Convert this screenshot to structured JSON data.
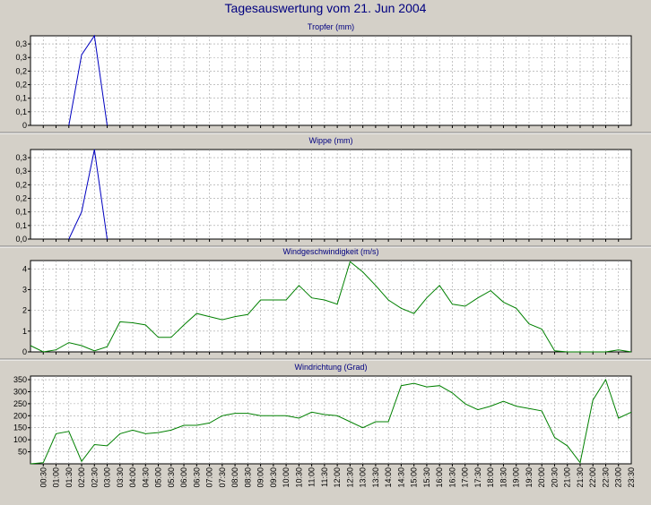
{
  "page": {
    "title": "Tagesauswertung vom 21. Jun 2004"
  },
  "colors": {
    "background": "#d4d0c8",
    "title": "#000080",
    "rain": "#0000c0",
    "wind": "#008000"
  },
  "chart_data": [
    {
      "type": "line",
      "title": "Tropfer (mm)",
      "color": "#0000c0",
      "ylim": [
        0,
        0.33
      ],
      "yticks": [
        0,
        0.05,
        0.1,
        0.15,
        0.2,
        0.25,
        0.3
      ],
      "ytick_labels": [
        "0",
        "0,1",
        "0,1",
        "0,2",
        "0,2",
        "0,3",
        "0,3"
      ],
      "x_points": [
        1.5,
        2.0,
        2.5,
        3.0
      ],
      "values": [
        0,
        0.26,
        0.33,
        0
      ]
    },
    {
      "type": "line",
      "title": "Wippe (mm)",
      "color": "#0000c0",
      "ylim": [
        0,
        0.33
      ],
      "yticks": [
        0,
        0.05,
        0.1,
        0.15,
        0.2,
        0.25,
        0.3
      ],
      "ytick_labels": [
        "0,0",
        "0,1",
        "0,1",
        "0,2",
        "0,2",
        "0,3",
        "0,3"
      ],
      "x_points": [
        1.5,
        2.0,
        2.5,
        3.0
      ],
      "values": [
        0,
        0.1,
        0.33,
        0
      ]
    },
    {
      "type": "line",
      "title": "Windgeschwindigkeit (m/s)",
      "color": "#008000",
      "ylim": [
        0,
        4.4
      ],
      "yticks": [
        0,
        1,
        2,
        3,
        4
      ],
      "ytick_labels": [
        "0",
        "1",
        "2",
        "3",
        "4"
      ],
      "x_points": [
        0,
        0.5,
        1,
        1.5,
        2,
        2.5,
        3,
        3.5,
        4,
        4.5,
        5,
        5.5,
        6,
        6.5,
        7,
        7.5,
        8,
        8.5,
        9,
        9.5,
        10,
        10.5,
        11,
        11.5,
        12,
        12.5,
        13,
        13.5,
        14,
        14.5,
        15,
        15.5,
        16,
        16.5,
        17,
        17.5,
        18,
        18.5,
        19,
        19.5,
        20,
        20.5,
        21,
        21.5,
        22,
        22.5,
        23,
        23.5
      ],
      "values": [
        0.3,
        0,
        0.1,
        0.45,
        0.3,
        0.05,
        0.25,
        1.45,
        1.4,
        1.3,
        0.7,
        0.7,
        1.3,
        1.85,
        1.7,
        1.55,
        1.7,
        1.8,
        2.5,
        2.5,
        2.5,
        3.2,
        2.6,
        2.5,
        2.3,
        4.35,
        3.85,
        3.2,
        2.5,
        2.1,
        1.85,
        2.6,
        3.2,
        2.3,
        2.2,
        2.6,
        2.95,
        2.4,
        2.1,
        1.35,
        1.1,
        0.05,
        0,
        0,
        0,
        0,
        0.1,
        0
      ]
    },
    {
      "type": "line",
      "title": "Windrichtung (Grad)",
      "color": "#008000",
      "ylim": [
        0,
        365
      ],
      "yticks": [
        50,
        100,
        150,
        200,
        250,
        300,
        350
      ],
      "ytick_labels": [
        "50",
        "100",
        "150",
        "200",
        "250",
        "300",
        "350"
      ],
      "x_points": [
        0,
        0.5,
        1,
        1.5,
        2,
        2.5,
        3,
        3.5,
        4,
        4.5,
        5,
        5.5,
        6,
        6.5,
        7,
        7.5,
        8,
        8.5,
        9,
        9.5,
        10,
        10.5,
        11,
        11.5,
        12,
        12.5,
        13,
        13.5,
        14,
        14.5,
        15,
        15.5,
        16,
        16.5,
        17,
        17.5,
        18,
        18.5,
        19,
        19.5,
        20,
        20.5,
        21,
        21.5,
        22,
        22.5,
        23,
        23.5
      ],
      "values": [
        0,
        5,
        125,
        135,
        10,
        80,
        75,
        125,
        140,
        125,
        130,
        140,
        160,
        160,
        170,
        200,
        210,
        210,
        200,
        200,
        200,
        190,
        215,
        205,
        200,
        175,
        150,
        175,
        175,
        325,
        335,
        320,
        325,
        295,
        250,
        225,
        240,
        260,
        240,
        230,
        220,
        110,
        75,
        5,
        265,
        350,
        190,
        215
      ]
    }
  ],
  "x_axis": {
    "labels": [
      "00:30",
      "01:00",
      "01:30",
      "02:00",
      "02:30",
      "03:00",
      "03:30",
      "04:00",
      "04:30",
      "05:00",
      "05:30",
      "06:00",
      "06:30",
      "07:00",
      "07:30",
      "08:00",
      "08:30",
      "09:00",
      "09:30",
      "10:00",
      "10:30",
      "11:00",
      "11:30",
      "12:00",
      "12:30",
      "13:00",
      "13:30",
      "14:00",
      "14:30",
      "15:00",
      "15:30",
      "16:00",
      "16:30",
      "17:00",
      "17:30",
      "18:00",
      "18:30",
      "19:00",
      "19:30",
      "20:00",
      "20:30",
      "21:00",
      "21:30",
      "22:00",
      "22:30",
      "23:00",
      "23:30"
    ]
  }
}
